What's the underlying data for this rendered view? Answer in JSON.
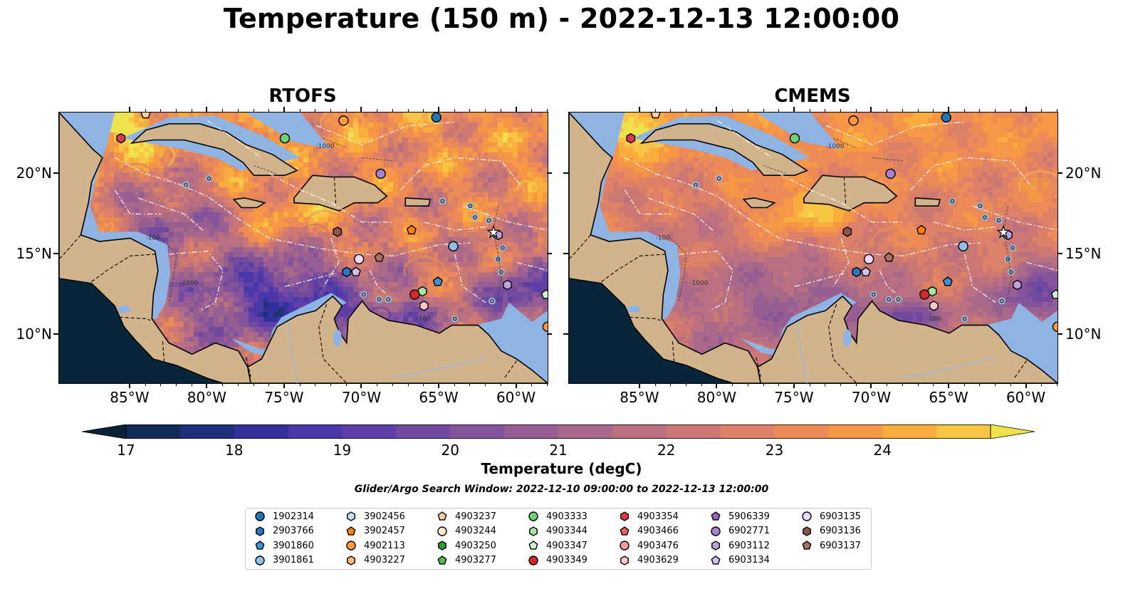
{
  "title": "Temperature (150 m) - 2022-12-13 12:00:00",
  "panels": [
    {
      "title": "RTOFS",
      "palette_bias": 0
    },
    {
      "title": "CMEMS",
      "palette_bias": 1
    }
  ],
  "x_ticks": [
    "85°W",
    "80°W",
    "75°W",
    "70°W",
    "65°W",
    "60°W"
  ],
  "y_ticks": [
    "20°N",
    "15°N",
    "10°N"
  ],
  "contour_labels": [
    "-100",
    "-1000",
    "-100",
    "-1000"
  ],
  "colorbar": {
    "ticks": [
      "17",
      "18",
      "19",
      "20",
      "21",
      "22",
      "23",
      "24"
    ],
    "label": "Temperature (degC)",
    "colors": [
      "#0a2236",
      "#102b58",
      "#1f2f7a",
      "#35319b",
      "#4a37a8",
      "#5e3fa8",
      "#714aa0",
      "#835499",
      "#965e92",
      "#a8688a",
      "#ba7080",
      "#cb7874",
      "#dc8167",
      "#ec8a58",
      "#f69746",
      "#f9ad3f",
      "#f8c545",
      "#f0e24c"
    ]
  },
  "search_window": "Glider/Argo Search Window: 2022-12-10 09:00:00 to 2022-12-13 12:00:00",
  "legend": [
    {
      "id": "1902314",
      "marker": "circle",
      "color": "#1f77b4"
    },
    {
      "id": "2903766",
      "marker": "hexagon",
      "color": "#2a77c1"
    },
    {
      "id": "3901860",
      "marker": "pentagon",
      "color": "#3a95d4"
    },
    {
      "id": "3901861",
      "marker": "circle",
      "color": "#8ec1ea"
    },
    {
      "id": "3902456",
      "marker": "hexagon",
      "color": "#c6e2f5"
    },
    {
      "id": "3902457",
      "marker": "pentagon",
      "color": "#ff7f0e"
    },
    {
      "id": "4902113",
      "marker": "circle",
      "color": "#ff9a3c"
    },
    {
      "id": "4903227",
      "marker": "hexagon",
      "color": "#ffbb78"
    },
    {
      "id": "4903237",
      "marker": "pentagon",
      "color": "#ffcf9e"
    },
    {
      "id": "4903244",
      "marker": "circle",
      "color": "#ffe6cc"
    },
    {
      "id": "4903250",
      "marker": "hexagon",
      "color": "#2ca02c"
    },
    {
      "id": "4903277",
      "marker": "pentagon",
      "color": "#4cbf4c"
    },
    {
      "id": "4903333",
      "marker": "circle",
      "color": "#6fd16f"
    },
    {
      "id": "4903344",
      "marker": "hexagon",
      "color": "#a6e6a0"
    },
    {
      "id": "4903347",
      "marker": "pentagon",
      "color": "#d2f5cc"
    },
    {
      "id": "4903349",
      "marker": "circle",
      "color": "#d62728"
    },
    {
      "id": "4903354",
      "marker": "hexagon",
      "color": "#dc3a45"
    },
    {
      "id": "4903466",
      "marker": "pentagon",
      "color": "#e8616a"
    },
    {
      "id": "4903476",
      "marker": "circle",
      "color": "#f39a9a"
    },
    {
      "id": "4903629",
      "marker": "hexagon",
      "color": "#fbc7c7"
    },
    {
      "id": "5906339",
      "marker": "pentagon",
      "color": "#9467bd"
    },
    {
      "id": "6902771",
      "marker": "circle",
      "color": "#a683d0"
    },
    {
      "id": "6903112",
      "marker": "hexagon",
      "color": "#bea3e0"
    },
    {
      "id": "6903134",
      "marker": "pentagon",
      "color": "#d3bdf0"
    },
    {
      "id": "6903135",
      "marker": "circle",
      "color": "#ecd8fb"
    },
    {
      "id": "6903136",
      "marker": "hexagon",
      "color": "#8c564b"
    },
    {
      "id": "6903137",
      "marker": "pentagon",
      "color": "#a8705f"
    }
  ],
  "map_points": [
    {
      "id": "4903354",
      "lon": -85.6,
      "lat": 22.2
    },
    {
      "id": "4903237",
      "lon": -84.0,
      "lat": 23.7
    },
    {
      "id": "4903333",
      "lon": -75.0,
      "lat": 22.2
    },
    {
      "id": "4902113",
      "lon": -71.2,
      "lat": 23.3
    },
    {
      "id": "1902314",
      "lon": -65.2,
      "lat": 23.5
    },
    {
      "id": "6902771",
      "lon": -68.8,
      "lat": 20.0
    },
    {
      "id": "6903136",
      "lon": -71.6,
      "lat": 16.4
    },
    {
      "id": "3902457",
      "lon": -66.8,
      "lat": 16.5
    },
    {
      "id": "6903112",
      "lon": -61.2,
      "lat": 16.2
    },
    {
      "id": "3901861",
      "lon": -64.1,
      "lat": 15.5
    },
    {
      "id": "6903137",
      "lon": -68.9,
      "lat": 14.8
    },
    {
      "id": "6903135",
      "lon": -70.2,
      "lat": 14.7
    },
    {
      "id": "2903766",
      "lon": -71.0,
      "lat": 13.9
    },
    {
      "id": "6903134",
      "lon": -70.4,
      "lat": 13.9
    },
    {
      "id": "3901860",
      "lon": -65.1,
      "lat": 13.3
    },
    {
      "id": "6903112",
      "lon": -60.6,
      "lat": 13.1
    },
    {
      "id": "4903344",
      "lon": -66.1,
      "lat": 12.7
    },
    {
      "id": "4903349",
      "lon": -66.6,
      "lat": 12.5
    },
    {
      "id": "4903629",
      "lon": -66.0,
      "lat": 11.8
    },
    {
      "id": "4903347",
      "lon": -58.1,
      "lat": 12.5
    },
    {
      "id": "4902113",
      "lon": -58.0,
      "lat": 10.5
    }
  ]
}
